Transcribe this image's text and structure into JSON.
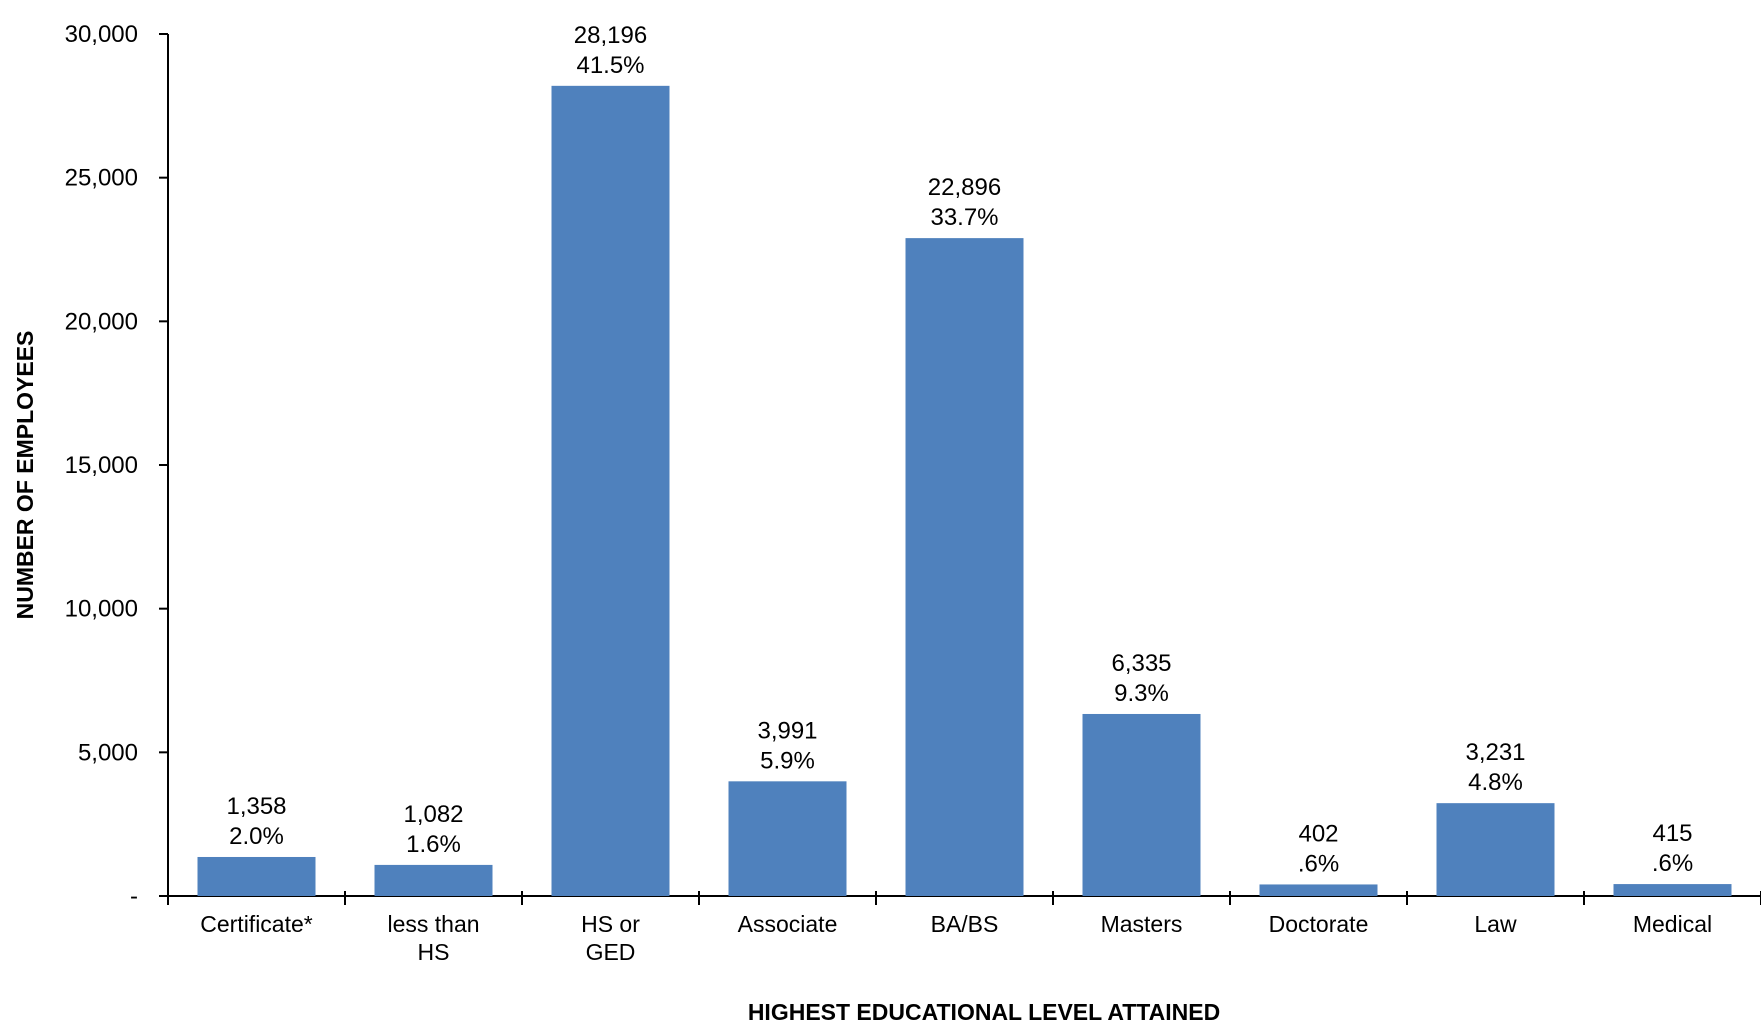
{
  "chart_data": {
    "type": "bar",
    "xlabel": "HIGHEST EDUCATIONAL LEVEL ATTAINED",
    "ylabel": "NUMBER OF EMPLOYEES",
    "ylim": [
      0,
      30000
    ],
    "yticks": [
      0,
      5000,
      10000,
      15000,
      20000,
      25000,
      30000
    ],
    "ytick_labels": [
      "-",
      "5,000",
      "10,000",
      "15,000",
      "20,000",
      "25,000",
      "30,000"
    ],
    "categories": [
      [
        "Certificate*"
      ],
      [
        "less than",
        "HS"
      ],
      [
        "HS or",
        "GED"
      ],
      [
        "Associate"
      ],
      [
        "BA/BS"
      ],
      [
        "Masters"
      ],
      [
        "Doctorate"
      ],
      [
        "Law"
      ],
      [
        "Medical"
      ]
    ],
    "values": [
      1358,
      1082,
      28196,
      3991,
      22896,
      6335,
      402,
      3231,
      415
    ],
    "value_labels": [
      "1,358",
      "1,082",
      "28,196",
      "3,991",
      "22,896",
      "6,335",
      "402",
      "3,231",
      "415"
    ],
    "percent_labels": [
      "2.0%",
      "1.6%",
      "41.5%",
      "5.9%",
      "33.7%",
      "9.3%",
      ".6%",
      "4.8%",
      ".6%"
    ],
    "bar_color": "#4F81BD",
    "grid": false,
    "legend": "none"
  }
}
